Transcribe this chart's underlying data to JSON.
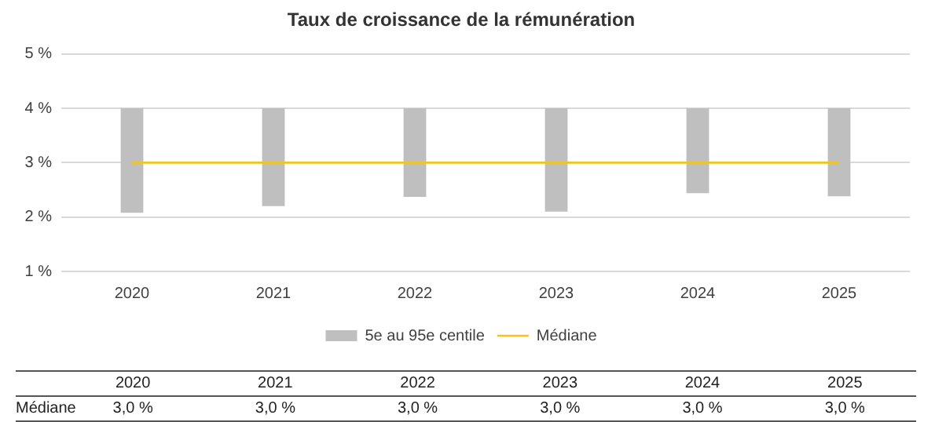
{
  "chart_data": {
    "type": "bar",
    "title": "Taux de croissance de la rémunération",
    "categories": [
      "2020",
      "2021",
      "2022",
      "2023",
      "2024",
      "2025"
    ],
    "series": [
      {
        "name": "5e au 95e centile",
        "color": "#bfbfbf",
        "base": [
          2.08,
          2.2,
          2.37,
          2.1,
          2.44,
          2.38
        ],
        "values": [
          1.92,
          1.8,
          1.63,
          1.9,
          1.56,
          1.62
        ]
      },
      {
        "name": "Médiane",
        "type": "line",
        "color": "#f2c51c",
        "values": [
          3,
          3,
          3,
          3,
          3,
          3
        ],
        "value_labels": [
          "3,0 %",
          "3,0 %",
          "3,0 %",
          "3,0 %",
          "3,0 %",
          "3,0 %"
        ]
      }
    ],
    "ylim": [
      1,
      5
    ],
    "yticks": [
      {
        "value": 1,
        "label": "1 %"
      },
      {
        "value": 2,
        "label": "2 %"
      },
      {
        "value": 3,
        "label": "3 %"
      },
      {
        "value": 4,
        "label": "4 %"
      },
      {
        "value": 5,
        "label": "5 %"
      }
    ],
    "grid": "y",
    "legend": "bottom",
    "marker": "none"
  }
}
